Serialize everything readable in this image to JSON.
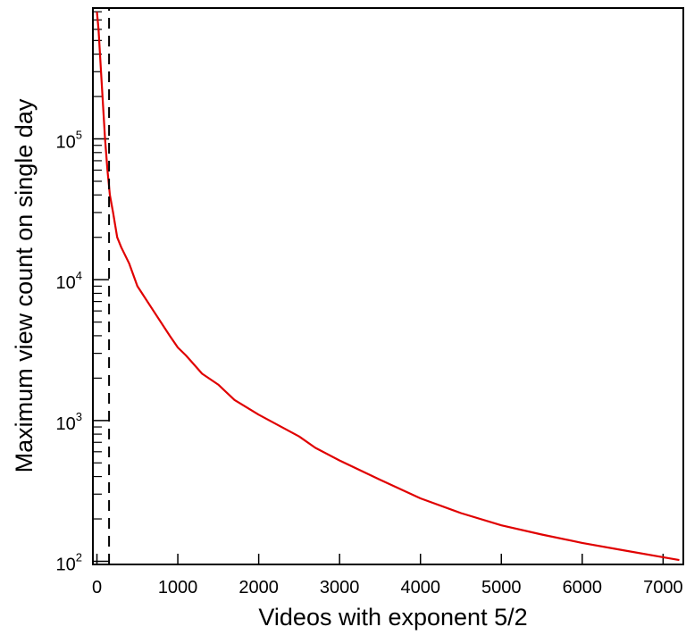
{
  "chart_data": {
    "type": "line",
    "title": "",
    "xlabel": "Videos with exponent 5/2",
    "ylabel": "Maximum view count on single day",
    "x_ticks": [
      0,
      1000,
      2000,
      3000,
      4000,
      5000,
      6000,
      7000
    ],
    "x_tick_labels": [
      "0",
      "1000",
      "2000",
      "3000",
      "4000",
      "5000",
      "6000",
      "7000"
    ],
    "y_scale": "log",
    "y_ticks": [
      100,
      1000,
      10000,
      100000
    ],
    "y_tick_labels": [
      {
        "base": "10",
        "exp": "2"
      },
      {
        "base": "10",
        "exp": "3"
      },
      {
        "base": "10",
        "exp": "4"
      },
      {
        "base": "10",
        "exp": "5"
      }
    ],
    "xlim": [
      -50,
      7250
    ],
    "ylim": [
      95,
      850000
    ],
    "grid": false,
    "legend": "none",
    "series": [
      {
        "color": "#e00000",
        "style": "solid",
        "points": [
          [
            0,
            800000
          ],
          [
            20,
            600000
          ],
          [
            50,
            300000
          ],
          [
            100,
            100000
          ],
          [
            130,
            60000
          ],
          [
            160,
            40000
          ],
          [
            200,
            30000
          ],
          [
            250,
            20000
          ],
          [
            300,
            17000
          ],
          [
            400,
            13000
          ],
          [
            500,
            9000
          ],
          [
            700,
            6000
          ],
          [
            900,
            4000
          ],
          [
            1000,
            3300
          ],
          [
            1100,
            2900
          ],
          [
            1200,
            2500
          ],
          [
            1300,
            2150
          ],
          [
            1500,
            1800
          ],
          [
            1700,
            1400
          ],
          [
            2000,
            1100
          ],
          [
            2500,
            770
          ],
          [
            2700,
            640
          ],
          [
            3000,
            520
          ],
          [
            3500,
            380
          ],
          [
            4000,
            280
          ],
          [
            4500,
            220
          ],
          [
            5000,
            180
          ],
          [
            5500,
            155
          ],
          [
            6000,
            135
          ],
          [
            6500,
            120
          ],
          [
            7000,
            107
          ],
          [
            7200,
            102
          ]
        ]
      },
      {
        "color": "#000000",
        "style": "dashed",
        "points": [
          [
            150,
            95
          ],
          [
            150,
            850000
          ]
        ]
      }
    ]
  }
}
